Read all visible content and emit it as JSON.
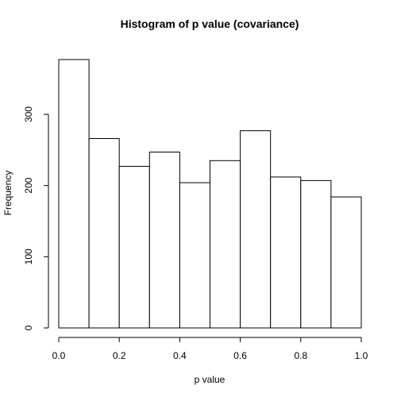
{
  "chart_data": {
    "type": "bar",
    "title": "Histogram of p value (covariance)",
    "xlabel": "p value",
    "ylabel": "Frequency",
    "xlim": [
      0,
      1
    ],
    "ylim": [
      0,
      380
    ],
    "x_ticks": [
      0.0,
      0.2,
      0.4,
      0.6,
      0.8,
      1.0
    ],
    "x_tick_labels": [
      "0.0",
      "0.2",
      "0.4",
      "0.6",
      "0.8",
      "1.0"
    ],
    "y_ticks": [
      0,
      100,
      200,
      300
    ],
    "y_tick_labels": [
      "0",
      "100",
      "200",
      "300"
    ],
    "bins": [
      {
        "x0": 0.0,
        "x1": 0.1,
        "value": 377
      },
      {
        "x0": 0.1,
        "x1": 0.2,
        "value": 266
      },
      {
        "x0": 0.2,
        "x1": 0.3,
        "value": 227
      },
      {
        "x0": 0.3,
        "x1": 0.4,
        "value": 247
      },
      {
        "x0": 0.4,
        "x1": 0.5,
        "value": 204
      },
      {
        "x0": 0.5,
        "x1": 0.6,
        "value": 235
      },
      {
        "x0": 0.6,
        "x1": 0.7,
        "value": 277
      },
      {
        "x0": 0.7,
        "x1": 0.8,
        "value": 212
      },
      {
        "x0": 0.8,
        "x1": 0.9,
        "value": 207
      },
      {
        "x0": 0.9,
        "x1": 1.0,
        "value": 184
      }
    ],
    "bar_fill": "#ffffff",
    "bar_stroke": "#000000",
    "grid": false,
    "legend": "none"
  }
}
